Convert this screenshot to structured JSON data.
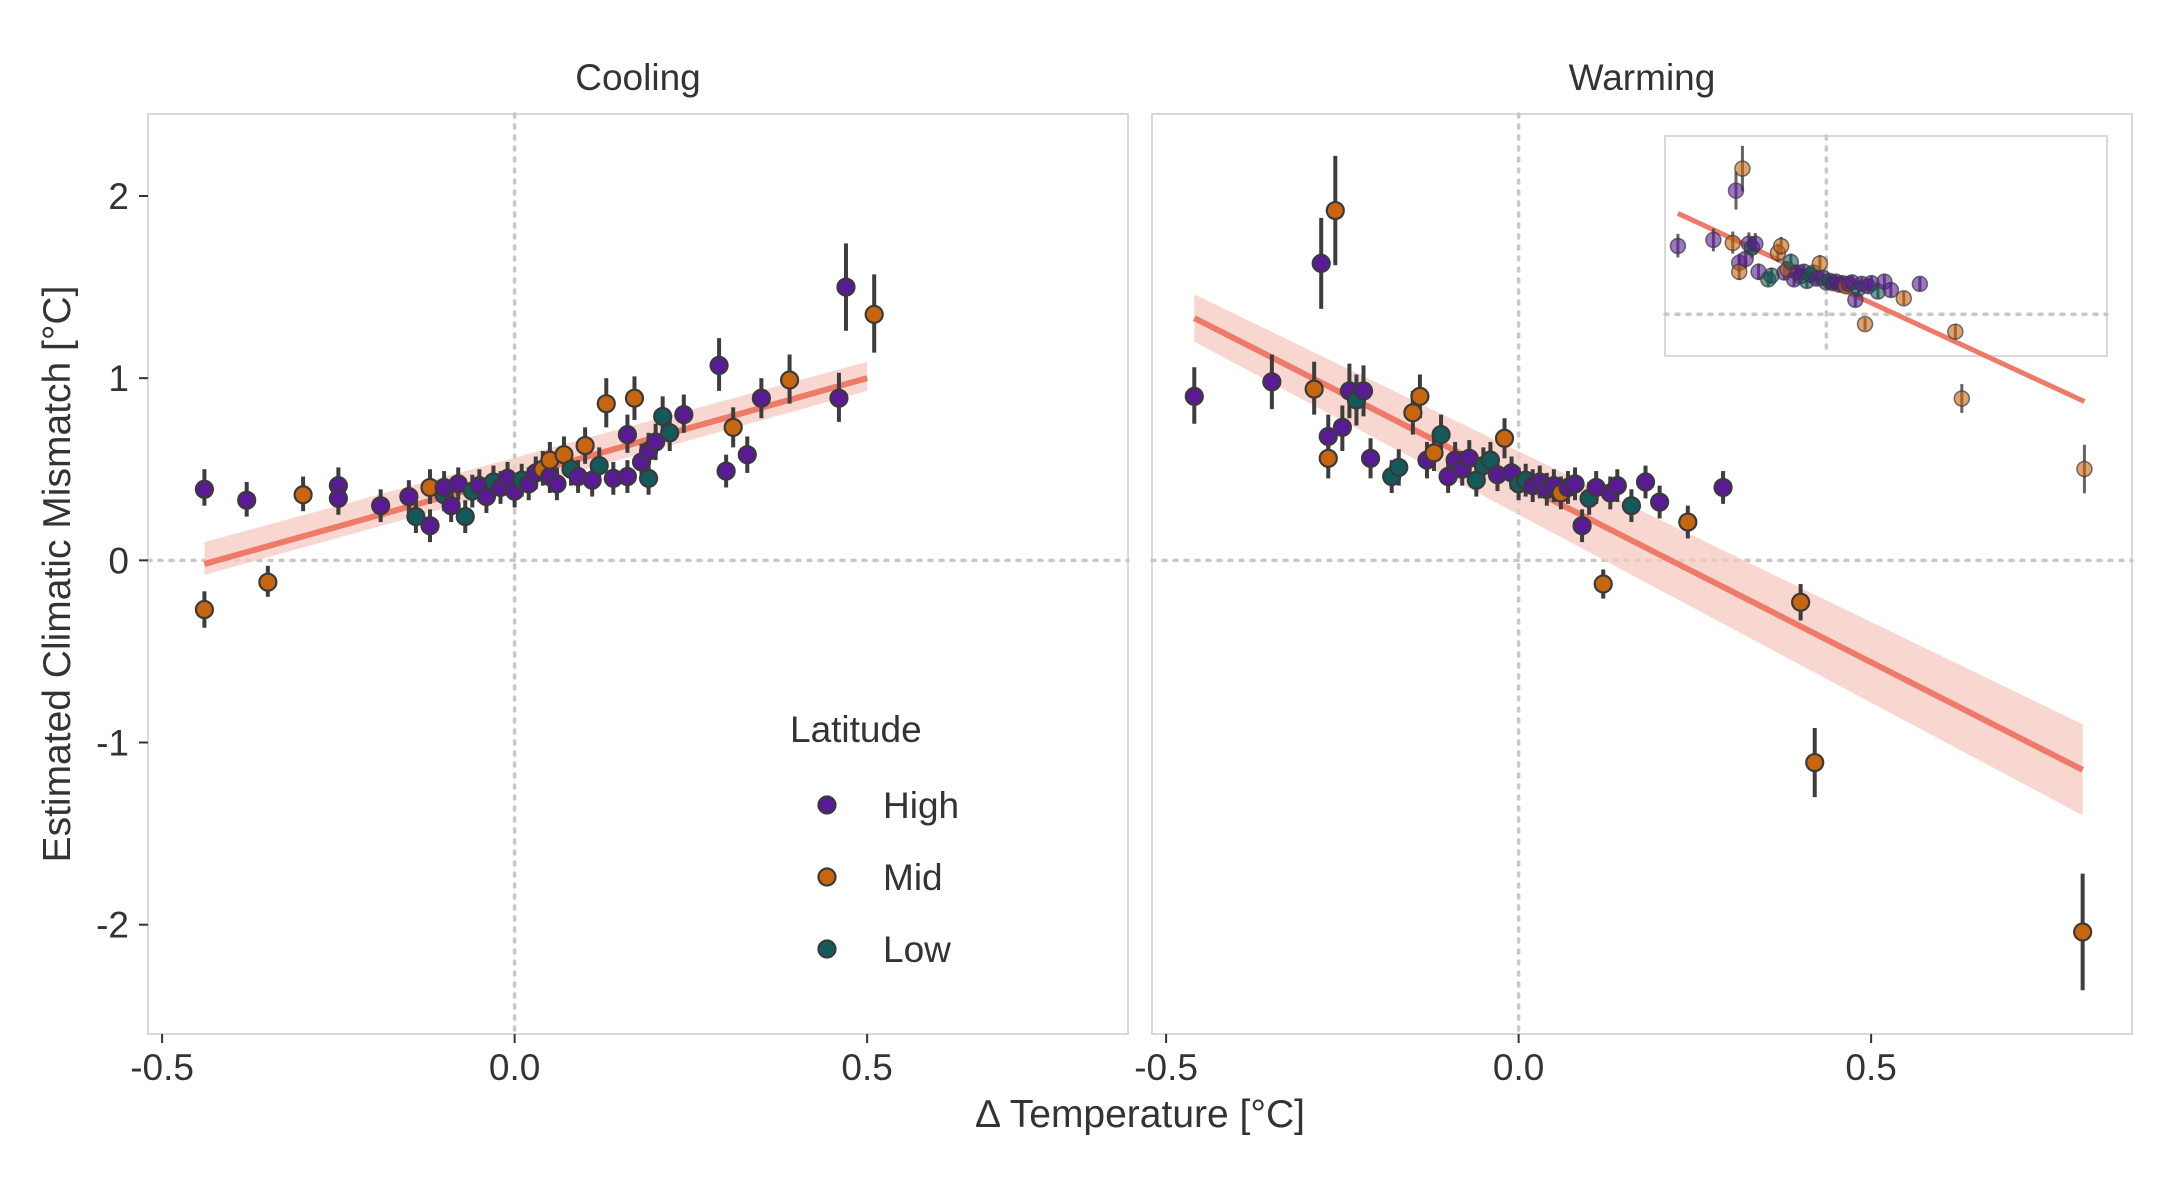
{
  "chart_data": {
    "type": "scatter",
    "ylabel": "Estimated Climatic Mismatch [°C]",
    "xlabel": "Δ  Temperature [°C]",
    "ylim": [
      -2.6,
      2.45
    ],
    "y_ticks": [
      2,
      1,
      0,
      -1,
      -2
    ],
    "y_tick_labels": [
      "2",
      "1",
      "0",
      "-1",
      "-2"
    ],
    "grid": false,
    "reference_lines": {
      "x": 0,
      "y": 0
    },
    "legend": {
      "title": "Latitude",
      "placement": "inside-bottom-right of Cooling panel",
      "entries": [
        {
          "label": "High",
          "color": "#5a1a96"
        },
        {
          "label": "Mid",
          "color": "#c8650f"
        },
        {
          "label": "Low",
          "color": "#145a5a"
        }
      ]
    },
    "colors": {
      "High": "#5a1a96",
      "Mid": "#c8650f",
      "Low": "#145a5a",
      "trend": "#ee7a68",
      "band": "#f7c9c1"
    },
    "panels": [
      {
        "title": "Cooling",
        "xlim": [
          -0.52,
          0.87
        ],
        "x_ticks": [
          -0.5,
          0.0,
          0.5
        ],
        "x_tick_labels": [
          "-0.5",
          "0.0",
          "0.5"
        ],
        "trend": {
          "x": [
            -0.44,
            0.5
          ],
          "y": [
            -0.02,
            1.0
          ],
          "band_upper": [
            0.1,
            1.09
          ],
          "band_lower": [
            -0.08,
            0.93
          ]
        },
        "points": [
          {
            "x": -0.44,
            "y": 0.39,
            "lo": 0.3,
            "hi": 0.5,
            "lat": "High"
          },
          {
            "x": -0.44,
            "y": -0.27,
            "lo": -0.37,
            "hi": -0.17,
            "lat": "Mid"
          },
          {
            "x": -0.38,
            "y": 0.33,
            "lo": 0.24,
            "hi": 0.43,
            "lat": "High"
          },
          {
            "x": -0.35,
            "y": -0.12,
            "lo": -0.2,
            "hi": -0.03,
            "lat": "Mid"
          },
          {
            "x": -0.3,
            "y": 0.36,
            "lo": 0.27,
            "hi": 0.46,
            "lat": "Mid"
          },
          {
            "x": -0.25,
            "y": 0.41,
            "lo": 0.32,
            "hi": 0.51,
            "lat": "High"
          },
          {
            "x": -0.25,
            "y": 0.34,
            "lo": 0.25,
            "hi": 0.43,
            "lat": "High"
          },
          {
            "x": -0.19,
            "y": 0.3,
            "lo": 0.21,
            "hi": 0.39,
            "lat": "High"
          },
          {
            "x": -0.15,
            "y": 0.35,
            "lo": 0.26,
            "hi": 0.44,
            "lat": "High"
          },
          {
            "x": -0.14,
            "y": 0.24,
            "lo": 0.15,
            "hi": 0.33,
            "lat": "Low"
          },
          {
            "x": -0.12,
            "y": 0.4,
            "lo": 0.31,
            "hi": 0.5,
            "lat": "Mid"
          },
          {
            "x": -0.12,
            "y": 0.19,
            "lo": 0.1,
            "hi": 0.28,
            "lat": "High"
          },
          {
            "x": -0.1,
            "y": 0.36,
            "lo": 0.27,
            "hi": 0.45,
            "lat": "Low"
          },
          {
            "x": -0.1,
            "y": 0.4,
            "lo": 0.31,
            "hi": 0.49,
            "lat": "High"
          },
          {
            "x": -0.09,
            "y": 0.3,
            "lo": 0.21,
            "hi": 0.39,
            "lat": "High"
          },
          {
            "x": -0.08,
            "y": 0.42,
            "lo": 0.33,
            "hi": 0.51,
            "lat": "High"
          },
          {
            "x": -0.07,
            "y": 0.24,
            "lo": 0.15,
            "hi": 0.33,
            "lat": "Low"
          },
          {
            "x": -0.06,
            "y": 0.38,
            "lo": 0.29,
            "hi": 0.47,
            "lat": "Low"
          },
          {
            "x": -0.05,
            "y": 0.41,
            "lo": 0.32,
            "hi": 0.5,
            "lat": "High"
          },
          {
            "x": -0.04,
            "y": 0.35,
            "lo": 0.26,
            "hi": 0.44,
            "lat": "High"
          },
          {
            "x": -0.03,
            "y": 0.43,
            "lo": 0.34,
            "hi": 0.52,
            "lat": "Low"
          },
          {
            "x": -0.02,
            "y": 0.4,
            "lo": 0.31,
            "hi": 0.49,
            "lat": "High"
          },
          {
            "x": -0.01,
            "y": 0.45,
            "lo": 0.36,
            "hi": 0.54,
            "lat": "High"
          },
          {
            "x": 0.0,
            "y": 0.38,
            "lo": 0.29,
            "hi": 0.47,
            "lat": "High"
          },
          {
            "x": 0.01,
            "y": 0.44,
            "lo": 0.35,
            "hi": 0.53,
            "lat": "Low"
          },
          {
            "x": 0.02,
            "y": 0.42,
            "lo": 0.33,
            "hi": 0.51,
            "lat": "High"
          },
          {
            "x": 0.03,
            "y": 0.48,
            "lo": 0.39,
            "hi": 0.57,
            "lat": "High"
          },
          {
            "x": 0.04,
            "y": 0.5,
            "lo": 0.41,
            "hi": 0.6,
            "lat": "Mid"
          },
          {
            "x": 0.05,
            "y": 0.46,
            "lo": 0.37,
            "hi": 0.55,
            "lat": "High"
          },
          {
            "x": 0.05,
            "y": 0.55,
            "lo": 0.45,
            "hi": 0.65,
            "lat": "Mid"
          },
          {
            "x": 0.06,
            "y": 0.42,
            "lo": 0.33,
            "hi": 0.51,
            "lat": "High"
          },
          {
            "x": 0.07,
            "y": 0.58,
            "lo": 0.48,
            "hi": 0.68,
            "lat": "Mid"
          },
          {
            "x": 0.08,
            "y": 0.5,
            "lo": 0.41,
            "hi": 0.6,
            "lat": "Low"
          },
          {
            "x": 0.09,
            "y": 0.46,
            "lo": 0.37,
            "hi": 0.55,
            "lat": "High"
          },
          {
            "x": 0.1,
            "y": 0.63,
            "lo": 0.53,
            "hi": 0.73,
            "lat": "Mid"
          },
          {
            "x": 0.11,
            "y": 0.44,
            "lo": 0.35,
            "hi": 0.53,
            "lat": "High"
          },
          {
            "x": 0.12,
            "y": 0.52,
            "lo": 0.43,
            "hi": 0.62,
            "lat": "Low"
          },
          {
            "x": 0.13,
            "y": 0.86,
            "lo": 0.73,
            "hi": 1.0,
            "lat": "Mid"
          },
          {
            "x": 0.14,
            "y": 0.45,
            "lo": 0.36,
            "hi": 0.54,
            "lat": "High"
          },
          {
            "x": 0.16,
            "y": 0.69,
            "lo": 0.59,
            "hi": 0.8,
            "lat": "High"
          },
          {
            "x": 0.16,
            "y": 0.46,
            "lo": 0.37,
            "hi": 0.55,
            "lat": "High"
          },
          {
            "x": 0.17,
            "y": 0.89,
            "lo": 0.77,
            "hi": 1.01,
            "lat": "Mid"
          },
          {
            "x": 0.18,
            "y": 0.54,
            "lo": 0.45,
            "hi": 0.64,
            "lat": "High"
          },
          {
            "x": 0.19,
            "y": 0.6,
            "lo": 0.5,
            "hi": 0.7,
            "lat": "High"
          },
          {
            "x": 0.19,
            "y": 0.45,
            "lo": 0.36,
            "hi": 0.54,
            "lat": "Low"
          },
          {
            "x": 0.2,
            "y": 0.65,
            "lo": 0.55,
            "hi": 0.75,
            "lat": "High"
          },
          {
            "x": 0.21,
            "y": 0.79,
            "lo": 0.69,
            "hi": 0.9,
            "lat": "Low"
          },
          {
            "x": 0.22,
            "y": 0.7,
            "lo": 0.6,
            "hi": 0.8,
            "lat": "Low"
          },
          {
            "x": 0.24,
            "y": 0.8,
            "lo": 0.7,
            "hi": 0.91,
            "lat": "High"
          },
          {
            "x": 0.29,
            "y": 1.07,
            "lo": 0.93,
            "hi": 1.22,
            "lat": "High"
          },
          {
            "x": 0.3,
            "y": 0.49,
            "lo": 0.4,
            "hi": 0.58,
            "lat": "High"
          },
          {
            "x": 0.31,
            "y": 0.73,
            "lo": 0.62,
            "hi": 0.84,
            "lat": "Mid"
          },
          {
            "x": 0.33,
            "y": 0.58,
            "lo": 0.48,
            "hi": 0.68,
            "lat": "High"
          },
          {
            "x": 0.35,
            "y": 0.89,
            "lo": 0.78,
            "hi": 1.0,
            "lat": "High"
          },
          {
            "x": 0.39,
            "y": 0.99,
            "lo": 0.86,
            "hi": 1.13,
            "lat": "Mid"
          },
          {
            "x": 0.46,
            "y": 0.89,
            "lo": 0.76,
            "hi": 1.03,
            "lat": "High"
          },
          {
            "x": 0.47,
            "y": 1.5,
            "lo": 1.26,
            "hi": 1.74,
            "lat": "High"
          },
          {
            "x": 0.51,
            "y": 1.35,
            "lo": 1.14,
            "hi": 1.57,
            "lat": "Mid"
          }
        ]
      },
      {
        "title": "Warming",
        "xlim": [
          -0.52,
          0.87
        ],
        "x_ticks": [
          -0.5,
          0.0,
          0.5
        ],
        "x_tick_labels": [
          "-0.5",
          "0.0",
          "0.5"
        ],
        "trend": {
          "x": [
            -0.46,
            0.8
          ],
          "y": [
            1.33,
            -1.15
          ],
          "band_upper": [
            1.46,
            -0.9
          ],
          "band_lower": [
            1.2,
            -1.4
          ]
        },
        "points": [
          {
            "x": -0.46,
            "y": 0.9,
            "lo": 0.75,
            "hi": 1.06,
            "lat": "High"
          },
          {
            "x": -0.35,
            "y": 0.98,
            "lo": 0.83,
            "hi": 1.13,
            "lat": "High"
          },
          {
            "x": -0.29,
            "y": 0.94,
            "lo": 0.8,
            "hi": 1.09,
            "lat": "Mid"
          },
          {
            "x": -0.28,
            "y": 1.63,
            "lo": 1.38,
            "hi": 1.88,
            "lat": "High"
          },
          {
            "x": -0.27,
            "y": 0.68,
            "lo": 0.56,
            "hi": 0.8,
            "lat": "High"
          },
          {
            "x": -0.27,
            "y": 0.56,
            "lo": 0.45,
            "hi": 0.67,
            "lat": "Mid"
          },
          {
            "x": -0.26,
            "y": 1.92,
            "lo": 1.62,
            "hi": 2.22,
            "lat": "Mid"
          },
          {
            "x": -0.25,
            "y": 0.73,
            "lo": 0.6,
            "hi": 0.85,
            "lat": "High"
          },
          {
            "x": -0.24,
            "y": 0.93,
            "lo": 0.78,
            "hi": 1.08,
            "lat": "High"
          },
          {
            "x": -0.23,
            "y": 0.88,
            "lo": 0.74,
            "hi": 1.02,
            "lat": "Low"
          },
          {
            "x": -0.22,
            "y": 0.93,
            "lo": 0.79,
            "hi": 1.07,
            "lat": "High"
          },
          {
            "x": -0.21,
            "y": 0.56,
            "lo": 0.45,
            "hi": 0.67,
            "lat": "High"
          },
          {
            "x": -0.18,
            "y": 0.46,
            "lo": 0.37,
            "hi": 0.55,
            "lat": "Low"
          },
          {
            "x": -0.17,
            "y": 0.51,
            "lo": 0.41,
            "hi": 0.61,
            "lat": "Low"
          },
          {
            "x": -0.15,
            "y": 0.81,
            "lo": 0.69,
            "hi": 0.93,
            "lat": "Mid"
          },
          {
            "x": -0.14,
            "y": 0.9,
            "lo": 0.78,
            "hi": 1.02,
            "lat": "Mid"
          },
          {
            "x": -0.13,
            "y": 0.55,
            "lo": 0.45,
            "hi": 0.65,
            "lat": "High"
          },
          {
            "x": -0.12,
            "y": 0.59,
            "lo": 0.49,
            "hi": 0.69,
            "lat": "Mid"
          },
          {
            "x": -0.11,
            "y": 0.69,
            "lo": 0.58,
            "hi": 0.8,
            "lat": "Low"
          },
          {
            "x": -0.1,
            "y": 0.46,
            "lo": 0.37,
            "hi": 0.55,
            "lat": "High"
          },
          {
            "x": -0.09,
            "y": 0.55,
            "lo": 0.45,
            "hi": 0.65,
            "lat": "High"
          },
          {
            "x": -0.08,
            "y": 0.5,
            "lo": 0.41,
            "hi": 0.6,
            "lat": "High"
          },
          {
            "x": -0.07,
            "y": 0.56,
            "lo": 0.46,
            "hi": 0.66,
            "lat": "High"
          },
          {
            "x": -0.06,
            "y": 0.44,
            "lo": 0.35,
            "hi": 0.53,
            "lat": "Low"
          },
          {
            "x": -0.05,
            "y": 0.52,
            "lo": 0.42,
            "hi": 0.62,
            "lat": "Low"
          },
          {
            "x": -0.04,
            "y": 0.55,
            "lo": 0.45,
            "hi": 0.65,
            "lat": "Low"
          },
          {
            "x": -0.03,
            "y": 0.47,
            "lo": 0.38,
            "hi": 0.56,
            "lat": "High"
          },
          {
            "x": -0.02,
            "y": 0.67,
            "lo": 0.56,
            "hi": 0.78,
            "lat": "Mid"
          },
          {
            "x": -0.01,
            "y": 0.48,
            "lo": 0.39,
            "hi": 0.57,
            "lat": "High"
          },
          {
            "x": 0.0,
            "y": 0.42,
            "lo": 0.33,
            "hi": 0.51,
            "lat": "Low"
          },
          {
            "x": 0.01,
            "y": 0.44,
            "lo": 0.35,
            "hi": 0.53,
            "lat": "Low"
          },
          {
            "x": 0.02,
            "y": 0.41,
            "lo": 0.32,
            "hi": 0.5,
            "lat": "High"
          },
          {
            "x": 0.03,
            "y": 0.43,
            "lo": 0.34,
            "hi": 0.52,
            "lat": "High"
          },
          {
            "x": 0.04,
            "y": 0.39,
            "lo": 0.3,
            "hi": 0.48,
            "lat": "High"
          },
          {
            "x": 0.05,
            "y": 0.41,
            "lo": 0.32,
            "hi": 0.5,
            "lat": "High"
          },
          {
            "x": 0.06,
            "y": 0.37,
            "lo": 0.28,
            "hi": 0.46,
            "lat": "Mid"
          },
          {
            "x": 0.07,
            "y": 0.4,
            "lo": 0.31,
            "hi": 0.49,
            "lat": "High"
          },
          {
            "x": 0.08,
            "y": 0.42,
            "lo": 0.33,
            "hi": 0.51,
            "lat": "High"
          },
          {
            "x": 0.09,
            "y": 0.19,
            "lo": 0.1,
            "hi": 0.28,
            "lat": "High"
          },
          {
            "x": 0.1,
            "y": 0.34,
            "lo": 0.25,
            "hi": 0.43,
            "lat": "Low"
          },
          {
            "x": 0.11,
            "y": 0.4,
            "lo": 0.31,
            "hi": 0.49,
            "lat": "High"
          },
          {
            "x": 0.12,
            "y": -0.13,
            "lo": -0.21,
            "hi": -0.05,
            "lat": "Mid"
          },
          {
            "x": 0.13,
            "y": 0.37,
            "lo": 0.28,
            "hi": 0.46,
            "lat": "High"
          },
          {
            "x": 0.14,
            "y": 0.41,
            "lo": 0.32,
            "hi": 0.5,
            "lat": "High"
          },
          {
            "x": 0.16,
            "y": 0.3,
            "lo": 0.21,
            "hi": 0.39,
            "lat": "Low"
          },
          {
            "x": 0.18,
            "y": 0.43,
            "lo": 0.34,
            "hi": 0.52,
            "lat": "High"
          },
          {
            "x": 0.2,
            "y": 0.32,
            "lo": 0.23,
            "hi": 0.41,
            "lat": "High"
          },
          {
            "x": 0.24,
            "y": 0.21,
            "lo": 0.12,
            "hi": 0.3,
            "lat": "Mid"
          },
          {
            "x": 0.29,
            "y": 0.4,
            "lo": 0.31,
            "hi": 0.49,
            "lat": "High"
          },
          {
            "x": 0.4,
            "y": -0.23,
            "lo": -0.33,
            "hi": -0.13,
            "lat": "Mid"
          },
          {
            "x": 0.42,
            "y": -1.11,
            "lo": -1.3,
            "hi": -0.92,
            "lat": "Mid"
          },
          {
            "x": 0.8,
            "y": -2.04,
            "lo": -2.36,
            "hi": -1.72,
            "lat": "Mid"
          }
        ]
      }
    ]
  }
}
